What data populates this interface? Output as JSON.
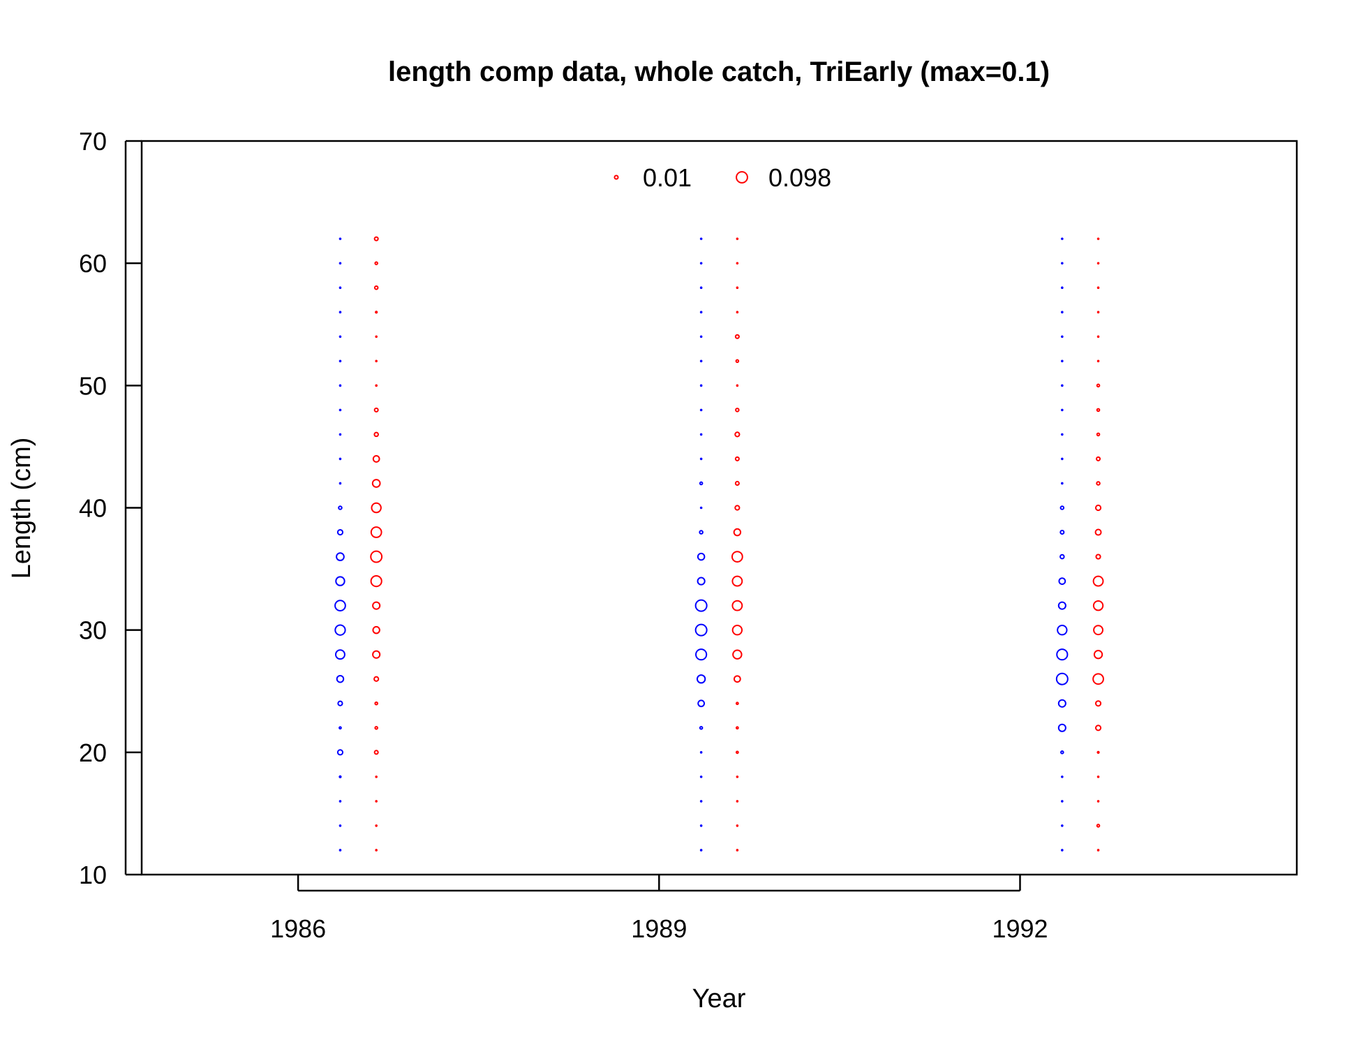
{
  "chart_data": {
    "type": "scatter",
    "subtype": "bubble",
    "title": "length comp data, whole catch, TriEarly (max=0.1)",
    "xlabel": "Year",
    "ylabel": "Length (cm)",
    "xlim": [
      1984.7,
      1994.3
    ],
    "ylim": [
      10,
      70
    ],
    "x_ticks": [
      1986,
      1989,
      1992
    ],
    "y_ticks": [
      10,
      20,
      30,
      40,
      50,
      60,
      70
    ],
    "grid": false,
    "legend": {
      "position": "top-center",
      "entries": [
        {
          "label": "0.01",
          "value": 0.01,
          "color": "#ff0000"
        },
        {
          "label": "0.098",
          "value": 0.098,
          "color": "#ff0000"
        }
      ]
    },
    "max_proportion": 0.1,
    "colors": {
      "blue": "#0000ff",
      "red": "#ff0000"
    },
    "lengths": [
      12,
      14,
      16,
      18,
      20,
      22,
      24,
      26,
      28,
      30,
      32,
      34,
      36,
      38,
      40,
      42,
      44,
      46,
      48,
      50,
      52,
      54,
      56,
      58,
      60,
      62
    ],
    "series": [
      {
        "x": 1986.35,
        "color": "blue",
        "values": [
          0.001,
          0.001,
          0.001,
          0.002,
          0.02,
          0.003,
          0.015,
          0.035,
          0.065,
          0.08,
          0.085,
          0.06,
          0.045,
          0.02,
          0.008,
          0.001,
          0.001,
          0.001,
          0.001,
          0.001,
          0.001,
          0.001,
          0.001,
          0.001,
          0.001,
          0.001
        ]
      },
      {
        "x": 1986.65,
        "color": "red",
        "values": [
          0.001,
          0.001,
          0.001,
          0.001,
          0.01,
          0.005,
          0.005,
          0.015,
          0.04,
          0.035,
          0.04,
          0.09,
          0.098,
          0.085,
          0.07,
          0.045,
          0.03,
          0.012,
          0.01,
          0.001,
          0.001,
          0.001,
          0.002,
          0.008,
          0.005,
          0.01
        ]
      },
      {
        "x": 1989.35,
        "color": "blue",
        "values": [
          0.001,
          0.001,
          0.001,
          0.001,
          0.001,
          0.005,
          0.03,
          0.05,
          0.09,
          0.1,
          0.1,
          0.04,
          0.035,
          0.008,
          0.001,
          0.005,
          0.001,
          0.001,
          0.001,
          0.001,
          0.001,
          0.001,
          0.001,
          0.001,
          0.001,
          0.001
        ]
      },
      {
        "x": 1989.65,
        "color": "red",
        "values": [
          0.001,
          0.001,
          0.001,
          0.001,
          0.003,
          0.003,
          0.003,
          0.03,
          0.06,
          0.07,
          0.075,
          0.075,
          0.085,
          0.035,
          0.015,
          0.01,
          0.01,
          0.015,
          0.008,
          0.001,
          0.005,
          0.01,
          0.001,
          0.001,
          0.001,
          0.001
        ]
      },
      {
        "x": 1992.35,
        "color": "blue",
        "values": [
          0.001,
          0.001,
          0.001,
          0.001,
          0.005,
          0.04,
          0.04,
          0.1,
          0.09,
          0.07,
          0.04,
          0.03,
          0.012,
          0.01,
          0.008,
          0.001,
          0.001,
          0.001,
          0.001,
          0.001,
          0.001,
          0.001,
          0.001,
          0.001,
          0.001,
          0.001
        ]
      },
      {
        "x": 1992.65,
        "color": "red",
        "values": [
          0.001,
          0.005,
          0.001,
          0.001,
          0.002,
          0.02,
          0.02,
          0.085,
          0.05,
          0.065,
          0.07,
          0.075,
          0.015,
          0.025,
          0.02,
          0.008,
          0.01,
          0.005,
          0.005,
          0.005,
          0.001,
          0.001,
          0.001,
          0.001,
          0.001,
          0.001
        ]
      }
    ]
  }
}
